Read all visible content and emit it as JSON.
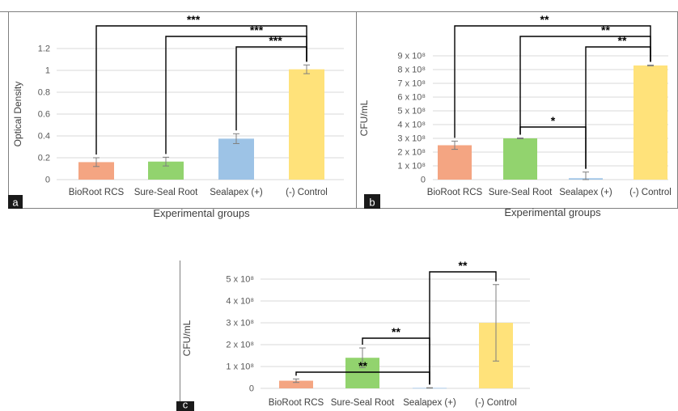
{
  "chart_data": [
    {
      "panel": "a",
      "type": "bar",
      "categories": [
        "BioRoot RCS",
        "Sure-Seal Root",
        "Sealapex (+)",
        "(-) Control"
      ],
      "values": [
        0.16,
        0.165,
        0.375,
        1.01
      ],
      "errors": [
        0.04,
        0.04,
        0.045,
        0.04
      ],
      "colors": [
        "#F4A582",
        "#92D36E",
        "#9DC3E6",
        "#FFE27A"
      ],
      "ylabel": "Optical Density",
      "xlabel": "Experimental groups",
      "ylim": [
        0,
        1.2
      ],
      "yticks": [
        {
          "v": 0,
          "label": "0"
        },
        {
          "v": 0.2,
          "label": "0.2"
        },
        {
          "v": 0.4,
          "label": "0.4"
        },
        {
          "v": 0.6,
          "label": "0.6"
        },
        {
          "v": 0.8,
          "label": "0.8"
        },
        {
          "v": 1.0,
          "label": "1"
        },
        {
          "v": 1.2,
          "label": "1.2"
        }
      ],
      "grid": true,
      "significance": [
        {
          "from": 0,
          "to": 3,
          "label": "***"
        },
        {
          "from": 1,
          "to": 3,
          "label": "***"
        },
        {
          "from": 2,
          "to": 3,
          "label": "***"
        }
      ]
    },
    {
      "panel": "b",
      "type": "bar",
      "categories": [
        "BioRoot RCS",
        "Sure-Seal Root",
        "Sealapex (+)",
        "(-) Control"
      ],
      "values": [
        250000000,
        300000000,
        10000000,
        830000000
      ],
      "errors": [
        30000000,
        3000000,
        45000000,
        3000000
      ],
      "colors": [
        "#F4A582",
        "#92D36E",
        "#9DC3E6",
        "#FFE27A"
      ],
      "ylabel": "CFU/mL",
      "xlabel": "Experimental groups",
      "ylim": [
        0,
        900000000
      ],
      "yticks": [
        {
          "v": 0,
          "label": "0"
        },
        {
          "v": 100000000,
          "label": "1 x 10⁸"
        },
        {
          "v": 200000000,
          "label": "2 x 10⁸"
        },
        {
          "v": 300000000,
          "label": "3 x 10⁸"
        },
        {
          "v": 400000000,
          "label": "4 x 10⁸"
        },
        {
          "v": 500000000,
          "label": "5 x 10⁸"
        },
        {
          "v": 600000000,
          "label": "6 x 10⁸"
        },
        {
          "v": 700000000,
          "label": "7 x 10⁸"
        },
        {
          "v": 800000000,
          "label": "8 x 10⁸"
        },
        {
          "v": 900000000,
          "label": "9 x 10⁸"
        }
      ],
      "grid": true,
      "significance": [
        {
          "from": 0,
          "to": 3,
          "label": "**"
        },
        {
          "from": 1,
          "to": 3,
          "label": "**"
        },
        {
          "from": 2,
          "to": 3,
          "label": "**"
        },
        {
          "from": 1,
          "to": 2,
          "label": "*"
        }
      ]
    },
    {
      "panel": "c",
      "type": "bar",
      "categories": [
        "BioRoot RCS",
        "Sure-Seal Root",
        "Sealapex (+)",
        "(-) Control"
      ],
      "values": [
        35000000,
        140000000,
        2000000,
        300000000
      ],
      "errors": [
        8000000,
        45000000,
        1000000,
        175000000
      ],
      "colors": [
        "#F4A582",
        "#92D36E",
        "#9DC3E6",
        "#FFE27A"
      ],
      "ylabel": "CFU/mL",
      "xlabel": "",
      "ylim": [
        0,
        500000000
      ],
      "yticks": [
        {
          "v": 0,
          "label": "0"
        },
        {
          "v": 100000000,
          "label": "1 x 10⁸"
        },
        {
          "v": 200000000,
          "label": "2 x 10⁸"
        },
        {
          "v": 300000000,
          "label": "3 x 10⁸"
        },
        {
          "v": 400000000,
          "label": "4 x 10⁸"
        },
        {
          "v": 500000000,
          "label": "5 x 10⁸"
        }
      ],
      "grid": true,
      "significance": [
        {
          "from": 0,
          "to": 2,
          "label": "**"
        },
        {
          "from": 1,
          "to": 2,
          "label": "**"
        },
        {
          "from": 2,
          "to": 3,
          "label": "**"
        }
      ]
    }
  ]
}
